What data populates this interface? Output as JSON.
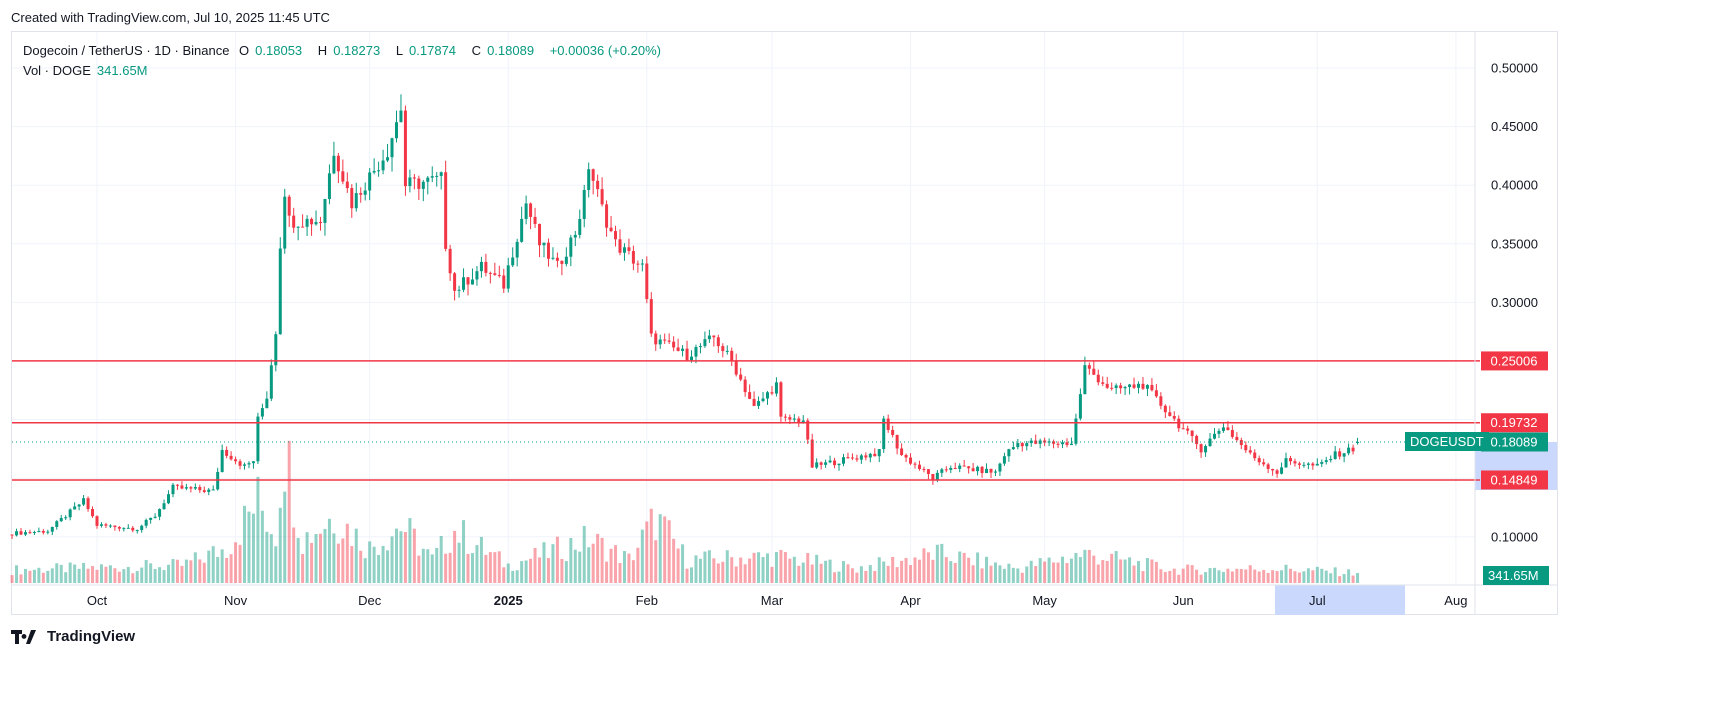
{
  "header": {
    "created": "Created with TradingView.com, Jul 10, 2025 11:45 UTC"
  },
  "legend": {
    "symbol": "Dogecoin / TetherUS · 1D · Binance",
    "o_label": "O",
    "o": "0.18053",
    "h_label": "H",
    "h": "0.18273",
    "l_label": "L",
    "l": "0.17874",
    "c_label": "C",
    "c": "0.18089",
    "change": "+0.00036 (+0.20%)",
    "vol_label": "Vol · DOGE",
    "vol": "341.65M"
  },
  "footer": {
    "brand": "TradingView"
  },
  "colors": {
    "up": "#089981",
    "down": "#f23645",
    "line": "#f23645",
    "grid": "#f0f3fa",
    "highlight": "#c9d8fc"
  },
  "chart_data": {
    "type": "candlestick",
    "symbol": "DOGEUSDT",
    "interval": "1D",
    "ylim": [
      0.08,
      0.52
    ],
    "y_ticks": [
      "0.50000",
      "0.45000",
      "0.40000",
      "0.35000",
      "0.30000",
      "0.10000"
    ],
    "x_ticks": [
      "Oct",
      "Nov",
      "Dec",
      "2025",
      "Feb",
      "Mar",
      "Apr",
      "May",
      "Jun",
      "Jul",
      "Aug"
    ],
    "grid": true,
    "close_keypoints": [
      [
        "2024-09-12",
        0.103
      ],
      [
        "2024-09-20",
        0.105
      ],
      [
        "2024-09-28",
        0.131
      ],
      [
        "2024-10-01",
        0.11
      ],
      [
        "2024-10-10",
        0.107
      ],
      [
        "2024-10-14",
        0.118
      ],
      [
        "2024-10-18",
        0.142
      ],
      [
        "2024-10-27",
        0.139
      ],
      [
        "2024-10-29",
        0.174
      ],
      [
        "2024-11-03",
        0.16
      ],
      [
        "2024-11-05",
        0.165
      ],
      [
        "2024-11-06",
        0.2
      ],
      [
        "2024-11-08",
        0.22
      ],
      [
        "2024-11-10",
        0.276
      ],
      [
        "2024-11-11",
        0.35
      ],
      [
        "2024-11-12",
        0.396
      ],
      [
        "2024-11-13",
        0.37
      ],
      [
        "2024-11-20",
        0.37
      ],
      [
        "2024-11-23",
        0.43
      ],
      [
        "2024-11-27",
        0.385
      ],
      [
        "2024-12-05",
        0.43
      ],
      [
        "2024-12-08",
        0.466
      ],
      [
        "2024-12-09",
        0.4
      ],
      [
        "2024-12-17",
        0.405
      ],
      [
        "2024-12-18",
        0.35
      ],
      [
        "2024-12-20",
        0.31
      ],
      [
        "2024-12-26",
        0.33
      ],
      [
        "2024-12-31",
        0.315
      ],
      [
        "2025-01-01",
        0.33
      ],
      [
        "2025-01-05",
        0.385
      ],
      [
        "2025-01-08",
        0.35
      ],
      [
        "2025-01-12",
        0.33
      ],
      [
        "2025-01-16",
        0.36
      ],
      [
        "2025-01-18",
        0.39
      ],
      [
        "2025-01-19",
        0.417
      ],
      [
        "2025-01-22",
        0.38
      ],
      [
        "2025-01-25",
        0.35
      ],
      [
        "2025-01-31",
        0.33
      ],
      [
        "2025-02-02",
        0.27
      ],
      [
        "2025-02-10",
        0.255
      ],
      [
        "2025-02-16",
        0.27
      ],
      [
        "2025-02-20",
        0.25
      ],
      [
        "2025-02-25",
        0.21
      ],
      [
        "2025-03-02",
        0.23
      ],
      [
        "2025-03-03",
        0.2
      ],
      [
        "2025-03-08",
        0.2
      ],
      [
        "2025-03-10",
        0.16
      ],
      [
        "2025-03-25",
        0.172
      ],
      [
        "2025-03-26",
        0.2
      ],
      [
        "2025-03-30",
        0.17
      ],
      [
        "2025-04-06",
        0.15
      ],
      [
        "2025-04-10",
        0.16
      ],
      [
        "2025-04-20",
        0.155
      ],
      [
        "2025-04-22",
        0.17
      ],
      [
        "2025-04-25",
        0.18
      ],
      [
        "2025-05-07",
        0.18
      ],
      [
        "2025-05-08",
        0.2
      ],
      [
        "2025-05-10",
        0.245
      ],
      [
        "2025-05-16",
        0.225
      ],
      [
        "2025-05-23",
        0.23
      ],
      [
        "2025-05-30",
        0.2
      ],
      [
        "2025-06-05",
        0.175
      ],
      [
        "2025-06-10",
        0.195
      ],
      [
        "2025-06-16",
        0.17
      ],
      [
        "2025-06-22",
        0.155
      ],
      [
        "2025-06-24",
        0.165
      ],
      [
        "2025-07-01",
        0.16
      ],
      [
        "2025-07-05",
        0.17
      ],
      [
        "2025-07-09",
        0.175
      ],
      [
        "2025-07-10",
        0.18089
      ]
    ],
    "volume_keypoints_millions": [
      [
        "2024-09-12",
        450
      ],
      [
        "2024-10-20",
        600
      ],
      [
        "2024-10-30",
        1200
      ],
      [
        "2024-11-06",
        2800
      ],
      [
        "2024-11-10",
        1700
      ],
      [
        "2024-11-11",
        3500
      ],
      [
        "2024-11-12",
        4700
      ],
      [
        "2024-11-16",
        1500
      ],
      [
        "2024-11-23",
        2300
      ],
      [
        "2024-12-01",
        1200
      ],
      [
        "2024-12-08",
        2000
      ],
      [
        "2024-12-15",
        800
      ],
      [
        "2024-12-20",
        1800
      ],
      [
        "2025-01-01",
        600
      ],
      [
        "2025-01-19",
        1500
      ],
      [
        "2025-01-28",
        800
      ],
      [
        "2025-02-03",
        2200
      ],
      [
        "2025-02-10",
        800
      ],
      [
        "2025-03-02",
        900
      ],
      [
        "2025-03-20",
        500
      ],
      [
        "2025-04-07",
        1000
      ],
      [
        "2025-04-25",
        500
      ],
      [
        "2025-05-10",
        1000
      ],
      [
        "2025-05-30",
        450
      ],
      [
        "2025-06-22",
        500
      ],
      [
        "2025-07-10",
        341.65
      ]
    ],
    "levels": [
      {
        "label": "0.25006",
        "value": 0.25006
      },
      {
        "label": "0.19732",
        "value": 0.19732
      },
      {
        "label": "0.14849",
        "value": 0.14849
      }
    ],
    "last_price": {
      "symbol": "DOGEUSDT",
      "label": "0.18089",
      "value": 0.18089
    },
    "last_volume": {
      "label": "341.65M"
    }
  }
}
